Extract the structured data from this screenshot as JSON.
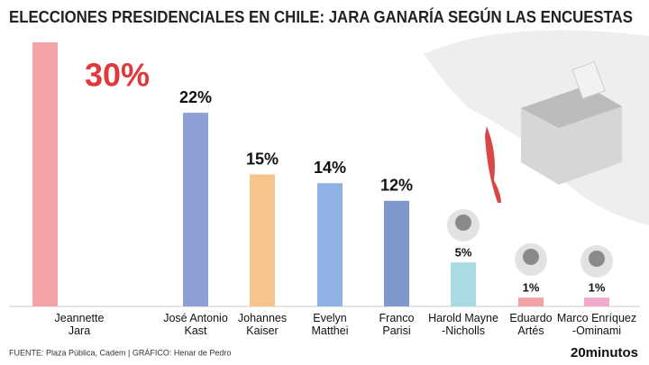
{
  "chart_data": {
    "type": "bar",
    "title": "ELECCIONES PRESIDENCIALES EN CHILE: JARA GANARÍA SEGÚN LAS ENCUESTAS",
    "categories": [
      "Jeannette\nJara",
      "José Antonio\nKast",
      "Johannes\nKaiser",
      "Evelyn\nMatthei",
      "Franco\nParisi",
      "Harold Mayne\n-Nicholls",
      "Eduardo\nArtés",
      "Marco Enríquez\n-Ominami"
    ],
    "values": [
      30,
      22,
      15,
      14,
      12,
      5,
      1,
      1
    ],
    "value_labels": [
      "30%",
      "22%",
      "15%",
      "14%",
      "12%",
      "5%",
      "1%",
      "1%"
    ],
    "colors": [
      "#f4a4a8",
      "#8d9fd3",
      "#f6c58c",
      "#8fb1e3",
      "#7f98cc",
      "#a9dbe3",
      "#f2a2a6",
      "#f1a9c9"
    ],
    "source": "FUENTE: Plaza Pública, Cadem  |  GRÁFICO: Henar de Pedro",
    "logo": "20minutos"
  }
}
